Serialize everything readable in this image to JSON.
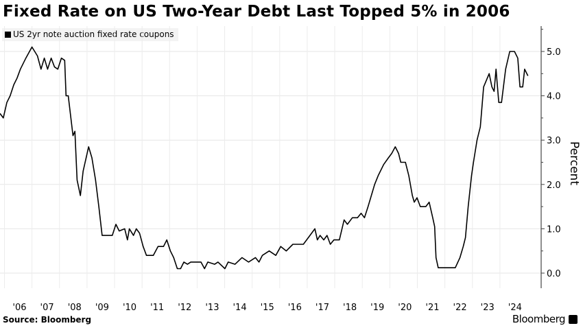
{
  "chart_data": {
    "type": "line",
    "title": "Fixed Rate on US Two-Year Debt Last Topped 5% in 2006",
    "legend": [
      "US 2yr note auction fixed rate coupons"
    ],
    "legend_position": "top-left",
    "xlabel": "",
    "ylabel": "Percent",
    "ylim": [
      -0.5,
      5.6
    ],
    "xlim": [
      2005.34,
      2025.0
    ],
    "yticks": [
      0.0,
      1.0,
      2.0,
      3.0,
      4.0,
      5.0
    ],
    "ytick_labels": [
      "0.0",
      "1.0",
      "2.0",
      "3.0",
      "4.0",
      "5.0"
    ],
    "xtick_labels": [
      "'06",
      "'07",
      "'08",
      "'09",
      "'10",
      "'11",
      "'12",
      "'13",
      "'14",
      "'15",
      "'16",
      "'17",
      "'18",
      "'19",
      "'20",
      "'21",
      "'22",
      "'23",
      "'24"
    ],
    "xtick_years": [
      2006,
      2007,
      2008,
      2009,
      2010,
      2011,
      2012,
      2013,
      2014,
      2015,
      2016,
      2017,
      2018,
      2019,
      2020,
      2021,
      2022,
      2023,
      2024
    ],
    "grid": true,
    "series": [
      {
        "name": "US 2yr note auction fixed rate coupons",
        "color": "#000000",
        "x": [
          2005.34,
          2005.46,
          2005.59,
          2005.71,
          2005.84,
          2005.96,
          2006.08,
          2006.28,
          2006.5,
          2006.7,
          2006.83,
          2006.95,
          2007.07,
          2007.2,
          2007.32,
          2007.44,
          2007.57,
          2007.69,
          2007.74,
          2007.82,
          2007.99,
          2008.06,
          2008.14,
          2008.26,
          2008.36,
          2008.56,
          2008.68,
          2008.81,
          2008.93,
          2009.05,
          2009.42,
          2009.55,
          2009.67,
          2009.87,
          2009.97,
          2010.04,
          2010.19,
          2010.29,
          2010.41,
          2010.54,
          2010.66,
          2010.91,
          2011.08,
          2011.28,
          2011.4,
          2011.53,
          2011.65,
          2011.78,
          2011.9,
          2012.02,
          2012.15,
          2012.27,
          2012.64,
          2012.77,
          2012.89,
          2013.14,
          2013.26,
          2013.51,
          2013.63,
          2013.88,
          2014.13,
          2014.37,
          2014.62,
          2014.75,
          2014.87,
          2015.12,
          2015.36,
          2015.54,
          2015.74,
          2015.98,
          2016.36,
          2016.6,
          2016.78,
          2016.87,
          2016.97,
          2017.1,
          2017.22,
          2017.34,
          2017.47,
          2017.67,
          2017.84,
          2017.96,
          2018.14,
          2018.33,
          2018.46,
          2018.58,
          2018.71,
          2018.83,
          2018.95,
          2019.08,
          2019.28,
          2019.45,
          2019.57,
          2019.7,
          2019.82,
          2019.9,
          2020.07,
          2020.19,
          2020.32,
          2020.39,
          2020.49,
          2020.61,
          2020.81,
          2020.93,
          2021.06,
          2021.13,
          2021.18,
          2021.26,
          2021.88,
          2022.05,
          2022.17,
          2022.25,
          2022.35,
          2022.47,
          2022.54,
          2022.67,
          2022.79,
          2022.91,
          2023.11,
          2023.21,
          2023.29,
          2023.36,
          2023.46,
          2023.56,
          2023.71,
          2023.86,
          2024.03,
          2024.15,
          2024.23,
          2024.33,
          2024.4,
          2024.52
        ],
        "y": [
          3.6,
          3.5,
          3.85,
          4.0,
          4.25,
          4.4,
          4.6,
          4.85,
          5.1,
          4.9,
          4.6,
          4.85,
          4.6,
          4.85,
          4.65,
          4.6,
          4.85,
          4.8,
          4.0,
          4.0,
          3.1,
          3.2,
          2.1,
          1.75,
          2.3,
          2.85,
          2.6,
          2.1,
          1.5,
          0.85,
          0.85,
          1.1,
          0.95,
          1.0,
          0.75,
          1.0,
          0.85,
          1.0,
          0.9,
          0.6,
          0.4,
          0.4,
          0.6,
          0.6,
          0.75,
          0.5,
          0.35,
          0.1,
          0.1,
          0.25,
          0.2,
          0.25,
          0.25,
          0.1,
          0.25,
          0.2,
          0.25,
          0.1,
          0.25,
          0.2,
          0.35,
          0.25,
          0.35,
          0.25,
          0.4,
          0.5,
          0.4,
          0.6,
          0.5,
          0.65,
          0.65,
          0.85,
          1.0,
          0.75,
          0.85,
          0.75,
          0.85,
          0.65,
          0.75,
          0.75,
          1.2,
          1.1,
          1.25,
          1.25,
          1.35,
          1.25,
          1.5,
          1.75,
          2.0,
          2.2,
          2.45,
          2.6,
          2.7,
          2.85,
          2.7,
          2.5,
          2.5,
          2.2,
          1.75,
          1.6,
          1.7,
          1.5,
          1.5,
          1.6,
          1.25,
          1.05,
          0.35,
          0.12,
          0.12,
          0.35,
          0.6,
          0.8,
          1.5,
          2.2,
          2.5,
          3.0,
          3.3,
          4.2,
          4.5,
          4.2,
          4.1,
          4.6,
          3.85,
          3.85,
          4.6,
          5.0,
          5.0,
          4.85,
          4.2,
          4.2,
          4.6,
          4.45
        ]
      }
    ]
  },
  "footer": {
    "source": "Source: Bloomberg",
    "brand": "Bloomberg"
  }
}
